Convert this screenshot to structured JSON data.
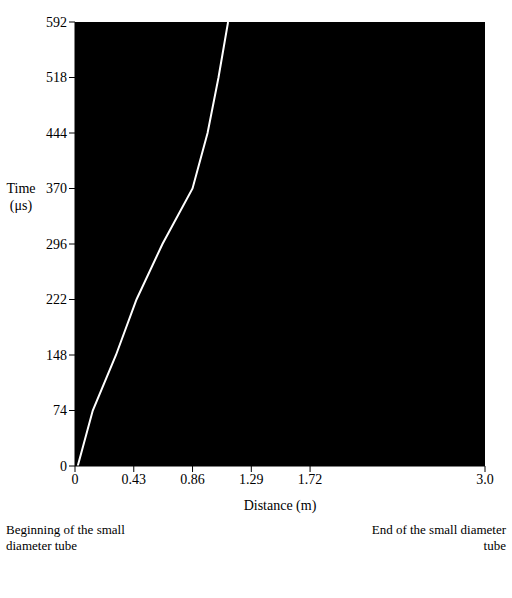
{
  "chart_data": {
    "type": "line",
    "xlabel": "Distance (m)",
    "ylabel": "Time (μs)",
    "annotations": [
      "Beginning of the small diameter tube",
      "End of the small diameter tube"
    ],
    "x": [
      0.02,
      0.13,
      0.3,
      0.45,
      0.64,
      0.86,
      0.97,
      1.05,
      1.12
    ],
    "values": [
      0,
      74,
      148,
      222,
      296,
      370,
      444,
      518,
      592
    ],
    "color": "#ffffff",
    "xlim": [
      0,
      3.0
    ],
    "xticks": [
      0,
      0.43,
      0.86,
      1.29,
      1.72,
      {
        "value": 3,
        "label": "3.0"
      }
    ],
    "ylim": [
      0,
      592
    ],
    "yticks": [
      0,
      74,
      148,
      222,
      296,
      370,
      444,
      518,
      592
    ],
    "grid": false
  }
}
